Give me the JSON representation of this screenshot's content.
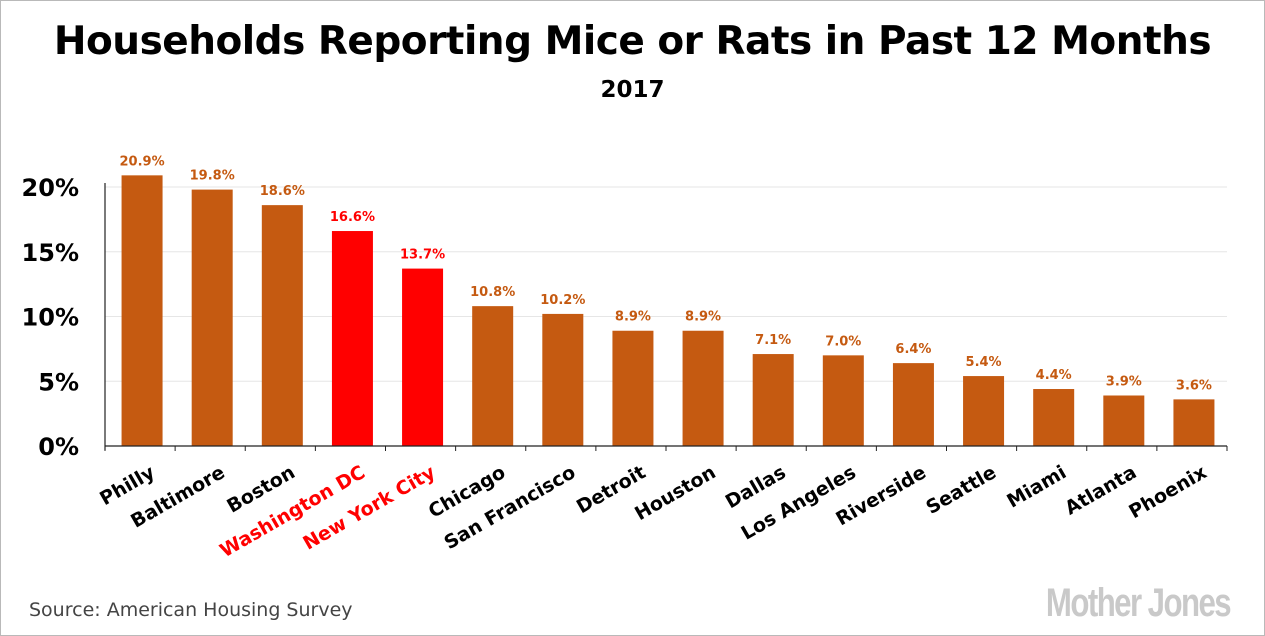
{
  "chart_data": {
    "type": "bar",
    "title": "Households Reporting Mice or Rats in Past 12 Months",
    "subtitle": "2017",
    "categories": [
      "Philly",
      "Baltimore",
      "Boston",
      "Washington DC",
      "New York City",
      "Chicago",
      "San Francisco",
      "Detroit",
      "Houston",
      "Dallas",
      "Los Angeles",
      "Riverside",
      "Seattle",
      "Miami",
      "Atlanta",
      "Phoenix"
    ],
    "values": [
      20.9,
      19.8,
      18.6,
      16.6,
      13.7,
      10.8,
      10.2,
      8.9,
      8.9,
      7.1,
      7.0,
      6.4,
      5.4,
      4.4,
      3.9,
      3.6
    ],
    "value_labels": [
      "20.9%",
      "19.8%",
      "18.6%",
      "16.6%",
      "13.7%",
      "10.8%",
      "10.2%",
      "8.9%",
      "8.9%",
      "7.1%",
      "7.0%",
      "6.4%",
      "5.4%",
      "4.4%",
      "3.9%",
      "3.6%"
    ],
    "highlighted": [
      "Washington DC",
      "New York City"
    ],
    "ylim": [
      0,
      20
    ],
    "yticks": [
      0,
      5,
      10,
      15,
      20
    ],
    "ytick_labels": [
      "0%",
      "5%",
      "10%",
      "15%",
      "20%"
    ],
    "xlabel": "",
    "ylabel": "",
    "grid": true,
    "colors": {
      "bar": "#c55a11",
      "highlight": "#ff0000",
      "label": "#c55a11",
      "highlight_label": "#ff0000",
      "grid": "#e6e6e6"
    },
    "source": "Source: American Housing Survey"
  },
  "watermark": "Mother Jones"
}
